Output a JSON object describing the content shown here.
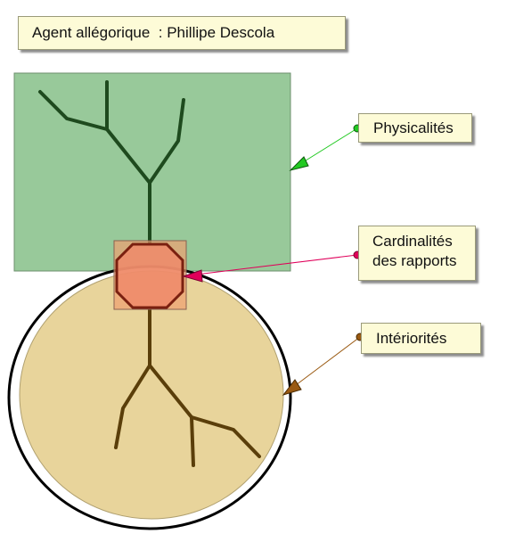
{
  "title": "Agent allégorique  : Phillipe Descola",
  "labels": {
    "physicalites": "Physicalités",
    "cardinalites_line1": "Cardinalités",
    "cardinalites_line2": "des rapports",
    "interiorites": "Intériorités"
  },
  "colors": {
    "physicalites_area": "#98c99a",
    "interiorites_area": "#e8d49b",
    "junction_octagon": "#ee8a6a",
    "upper_tree": "#1e4a1e",
    "lower_tree": "#5a3e0a",
    "arrow_physicalites": "#22c922",
    "arrow_cardinalites": "#e0005a",
    "arrow_interiorites": "#9a5a12",
    "label_background": "#fdfbd7"
  }
}
